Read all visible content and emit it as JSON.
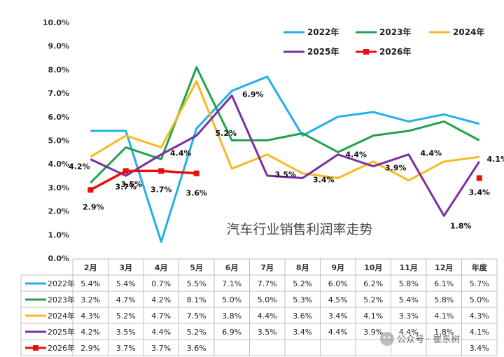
{
  "chart_data": {
    "type": "line",
    "title": "汽车行业销售利润率走势",
    "categories": [
      "2月",
      "3月",
      "4月",
      "5月",
      "6月",
      "7月",
      "8月",
      "9月",
      "10月",
      "11月",
      "12月",
      "年度"
    ],
    "y_ticks": [
      "0.0%",
      "1.0%",
      "2.0%",
      "3.0%",
      "4.0%",
      "5.0%",
      "6.0%",
      "7.0%",
      "8.0%",
      "9.0%",
      "10.0%"
    ],
    "ylim": [
      0,
      10
    ],
    "legend_position": "top-right",
    "grid": false,
    "series": [
      {
        "name": "2022年",
        "color": "#1FB0E8",
        "values": [
          5.4,
          5.4,
          0.7,
          5.5,
          7.1,
          7.7,
          5.2,
          6.0,
          6.2,
          5.8,
          6.1,
          5.7
        ],
        "labels": [
          "5.4%",
          "5.4%",
          "0.7%",
          "5.5%",
          "7.1%",
          "7.7%",
          "5.2%",
          "6.0%",
          "6.2%",
          "5.8%",
          "6.1%",
          "5.7%"
        ]
      },
      {
        "name": "2023年",
        "color": "#1FA34A",
        "values": [
          3.2,
          4.7,
          4.2,
          8.1,
          5.0,
          5.0,
          5.3,
          4.5,
          5.2,
          5.4,
          5.8,
          5.0
        ],
        "labels": [
          "3.2%",
          "4.7%",
          "4.2%",
          "8.1%",
          "5.0%",
          "5.0%",
          "5.3%",
          "4.5%",
          "5.2%",
          "5.4%",
          "5.8%",
          "5.0%"
        ]
      },
      {
        "name": "2024年",
        "color": "#F5BA22",
        "values": [
          4.3,
          5.2,
          4.7,
          7.5,
          3.8,
          4.4,
          3.6,
          3.4,
          4.1,
          3.3,
          4.1,
          4.3
        ],
        "labels": [
          "4.3%",
          "5.2%",
          "4.7%",
          "7.5%",
          "3.8%",
          "4.4%",
          "3.6%",
          "3.4%",
          "4.1%",
          "3.3%",
          "4.1%",
          "4.3%"
        ]
      },
      {
        "name": "2025年",
        "color": "#7B2FA0",
        "values": [
          4.2,
          3.5,
          4.4,
          5.2,
          6.9,
          3.5,
          3.4,
          4.4,
          3.9,
          4.4,
          1.8,
          4.1
        ],
        "labels": [
          "4.2%",
          "3.5%",
          "4.4%",
          "5.2%",
          "6.9%",
          "3.5%",
          "3.4%",
          "4.4%",
          "3.9%",
          "4.4%",
          "1.8%",
          "4.1%"
        ]
      },
      {
        "name": "2026年",
        "color": "#E8100E",
        "values": [
          2.9,
          3.7,
          3.7,
          3.6,
          null,
          null,
          null,
          null,
          null,
          null,
          null,
          3.4
        ],
        "labels": [
          "2.9%",
          "3.7%",
          "3.7%",
          "3.6%",
          "",
          "",
          "",
          "",
          "",
          "",
          "",
          "3.4%"
        ]
      }
    ],
    "annotations": [
      {
        "series": 3,
        "index": 0,
        "text": "4.2%",
        "color": "#111",
        "dx": -16,
        "dy": 14
      },
      {
        "series": 3,
        "index": 1,
        "text": "3.5%",
        "color": "#111",
        "dx": 8,
        "dy": 16
      },
      {
        "series": 3,
        "index": 2,
        "text": "4.4%",
        "color": "#111",
        "dx": 28,
        "dy": 2
      },
      {
        "series": 3,
        "index": 3,
        "text": "5.2%",
        "color": "#111",
        "dx": 42,
        "dy": 0
      },
      {
        "series": 3,
        "index": 4,
        "text": "6.9%",
        "color": "#111",
        "dx": 30,
        "dy": 2
      },
      {
        "series": 3,
        "index": 5,
        "text": "3.5%",
        "color": "#111",
        "dx": 26,
        "dy": 2
      },
      {
        "series": 3,
        "index": 6,
        "text": "3.4%",
        "color": "#111",
        "dx": 30,
        "dy": 6
      },
      {
        "series": 3,
        "index": 7,
        "text": "4.4%",
        "color": "#111",
        "dx": 26,
        "dy": 4
      },
      {
        "series": 3,
        "index": 8,
        "text": "3.9%",
        "color": "#111",
        "dx": 32,
        "dy": 6
      },
      {
        "series": 3,
        "index": 9,
        "text": "4.4%",
        "color": "#111",
        "dx": 32,
        "dy": 2
      },
      {
        "series": 3,
        "index": 10,
        "text": "1.8%",
        "color": "#111",
        "dx": 24,
        "dy": 18
      },
      {
        "series": 3,
        "index": 11,
        "text": "4.1%",
        "color": "#111",
        "dx": 26,
        "dy": 0
      },
      {
        "series": 4,
        "index": 0,
        "text": "2.9%",
        "color": "#E8100E",
        "dx": 4,
        "dy": 28
      },
      {
        "series": 4,
        "index": 1,
        "text": "3.7%",
        "color": "#E8100E",
        "dx": 0,
        "dy": 26
      },
      {
        "series": 4,
        "index": 2,
        "text": "3.7%",
        "color": "#E8100E",
        "dx": 0,
        "dy": 30
      },
      {
        "series": 4,
        "index": 3,
        "text": "3.6%",
        "color": "#E8100E",
        "dx": 0,
        "dy": 32
      },
      {
        "series": 4,
        "index": 11,
        "text": "3.4%",
        "color": "#E8100E",
        "dx": 0,
        "dy": 24
      }
    ]
  },
  "watermark": "公众号 · 崔东树"
}
